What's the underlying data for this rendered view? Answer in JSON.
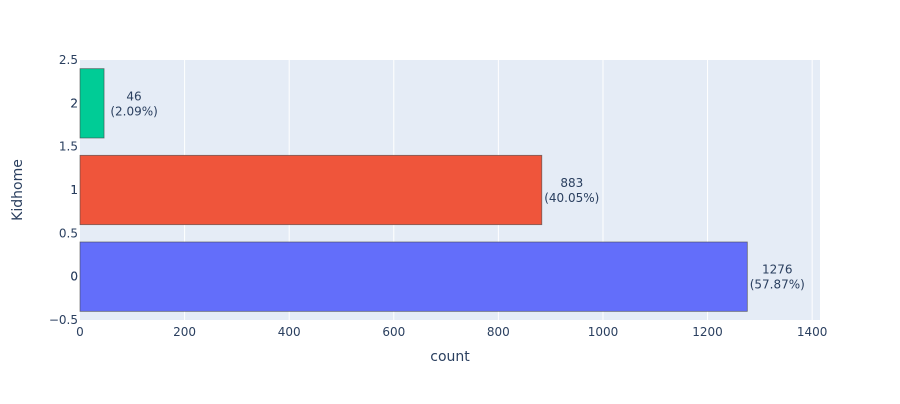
{
  "chart_data": {
    "type": "bar",
    "orientation": "horizontal",
    "categories": [
      "0",
      "1",
      "2"
    ],
    "values": [
      1276,
      883,
      46
    ],
    "percent_labels": [
      "(57.87%)",
      "(40.05%)",
      "(2.09%)"
    ],
    "bar_colors": [
      "#636efa",
      "#ef553b",
      "#00cc96"
    ],
    "xlabel": "count",
    "ylabel": "Kidhome",
    "xlim": [
      0,
      1415
    ],
    "ylim": [
      -0.5,
      2.5
    ],
    "x_ticks": [
      0,
      200,
      400,
      600,
      800,
      1000,
      1200,
      1400
    ],
    "y_ticks": [
      -0.5,
      0,
      0.5,
      1,
      1.5,
      2,
      2.5
    ],
    "y_tick_labels": [
      "−0.5",
      "0",
      "0.5",
      "1",
      "1.5",
      "2",
      "2.5"
    ],
    "grid": true,
    "legend": "none",
    "plot_background": "#e5ecf6",
    "grid_color": "#ffffff",
    "text_color": "#2a3f5f"
  }
}
